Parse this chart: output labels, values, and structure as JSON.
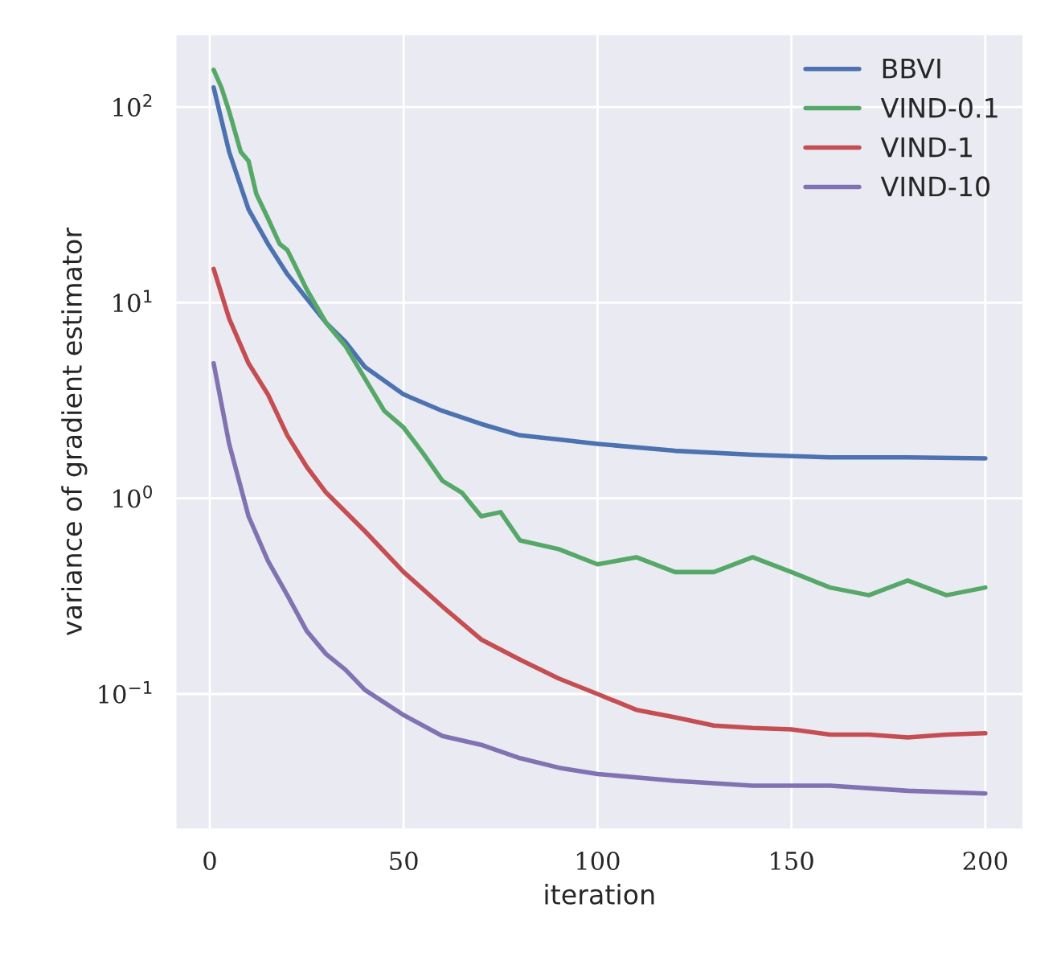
{
  "chart_data": {
    "type": "line",
    "xlabel": "iteration",
    "ylabel": "variance of gradient estimator",
    "log": "y",
    "grid": true,
    "legend": "top right",
    "line_style": "solid",
    "xlim": [
      -8.95,
      209.95
    ],
    "xticks": [
      0,
      50,
      100,
      150,
      200
    ],
    "ylim": [
      0.0202,
      237
    ],
    "yticks": [
      {
        "value": 0.1,
        "label": "10$^{−1}$"
      },
      {
        "value": 1,
        "label": "10$^{0}$"
      },
      {
        "value": 10,
        "label": "10$^{1}$"
      },
      {
        "value": 100,
        "label": "10$^{2}$"
      }
    ],
    "series": [
      {
        "name": "BBVI",
        "color": "#4c72b0",
        "x": [
          1,
          5,
          10,
          15,
          20,
          25,
          30,
          35,
          40,
          50,
          60,
          70,
          80,
          90,
          100,
          120,
          140,
          160,
          180,
          200
        ],
        "values": [
          126,
          59,
          30,
          20,
          14,
          10.5,
          7.9,
          6.3,
          4.7,
          3.4,
          2.8,
          2.4,
          2.1,
          2.0,
          1.9,
          1.75,
          1.67,
          1.62,
          1.62,
          1.6
        ]
      },
      {
        "name": "VIND-0.1",
        "color": "#55a868",
        "x": [
          1,
          3,
          5,
          8,
          10,
          12,
          15,
          18,
          20,
          22,
          25,
          30,
          35,
          40,
          45,
          50,
          55,
          60,
          65,
          70,
          75,
          80,
          90,
          100,
          110,
          120,
          130,
          140,
          150,
          160,
          170,
          180,
          190,
          200
        ],
        "values": [
          155,
          126,
          95,
          59,
          53,
          36,
          27,
          20,
          18.6,
          15.5,
          11.7,
          7.9,
          6,
          4.1,
          2.8,
          2.3,
          1.7,
          1.23,
          1.07,
          0.81,
          0.85,
          0.61,
          0.55,
          0.46,
          0.5,
          0.42,
          0.42,
          0.5,
          0.42,
          0.35,
          0.32,
          0.38,
          0.32,
          0.35
        ]
      },
      {
        "name": "VIND-1",
        "color": "#c44e52",
        "x": [
          1,
          5,
          10,
          15,
          20,
          25,
          30,
          40,
          50,
          60,
          70,
          80,
          90,
          100,
          110,
          120,
          130,
          140,
          150,
          160,
          170,
          180,
          190,
          200
        ],
        "values": [
          14.9,
          8.3,
          4.9,
          3.4,
          2.1,
          1.45,
          1.07,
          0.68,
          0.42,
          0.28,
          0.19,
          0.15,
          0.12,
          0.1,
          0.083,
          0.076,
          0.069,
          0.067,
          0.066,
          0.062,
          0.062,
          0.06,
          0.062,
          0.063
        ]
      },
      {
        "name": "VIND-10",
        "color": "#8172b2",
        "x": [
          1,
          5,
          10,
          15,
          20,
          25,
          30,
          35,
          40,
          50,
          60,
          70,
          80,
          90,
          100,
          120,
          140,
          160,
          180,
          200
        ],
        "values": [
          4.9,
          1.9,
          0.81,
          0.48,
          0.32,
          0.21,
          0.16,
          0.133,
          0.105,
          0.078,
          0.061,
          0.055,
          0.047,
          0.042,
          0.039,
          0.036,
          0.034,
          0.034,
          0.032,
          0.031
        ]
      }
    ]
  }
}
